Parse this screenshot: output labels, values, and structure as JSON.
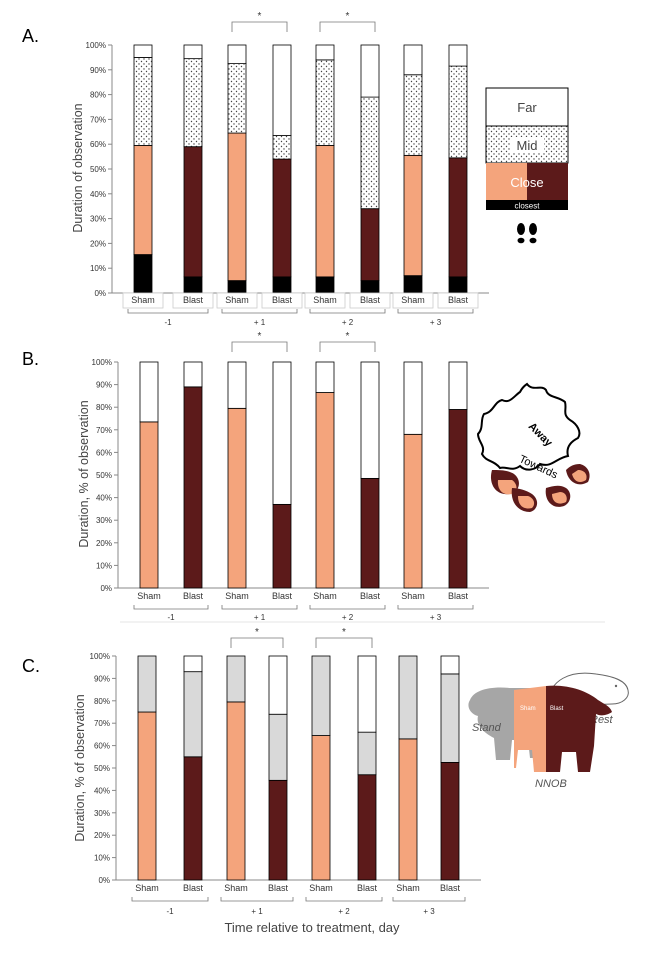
{
  "figure": {
    "x_axis_title": "Time relative to treatment, day",
    "colors": {
      "sham_close": "#F4A47C",
      "blast_close": "#5C1A1A",
      "closest": "#000000",
      "mid_dots": "#444444",
      "far": "#FFFFFF",
      "grey": "#D9D9D9",
      "axis": "#888888",
      "text": "#333333"
    }
  },
  "chart_data": [
    {
      "panel_label": "A.",
      "type": "bar",
      "stacked": true,
      "title": "",
      "ylabel": "Duration of observation",
      "xlabel": "",
      "ylim": [
        0,
        100
      ],
      "yticks": [
        "0%",
        "10%",
        "20%",
        "30%",
        "40%",
        "50%",
        "60%",
        "70%",
        "80%",
        "90%",
        "100%"
      ],
      "categories": [
        "Sham",
        "Blast",
        "Sham",
        "Blast",
        "Sham",
        "Blast",
        "Sham",
        "Blast"
      ],
      "groups": [
        "-1",
        "+ 1",
        "+ 2",
        "+ 3"
      ],
      "significance": [
        {
          "group": 1,
          "label": "*"
        },
        {
          "group": 2,
          "label": "*"
        }
      ],
      "series": [
        {
          "name": "closest",
          "values": [
            15.5,
            6.5,
            5,
            6.5,
            6.5,
            5,
            7,
            6.5
          ]
        },
        {
          "name": "Close",
          "values": [
            44,
            52.5,
            59.5,
            47.5,
            53,
            29,
            48.5,
            48
          ]
        },
        {
          "name": "Mid",
          "values": [
            35.5,
            35.5,
            28,
            9.5,
            34.5,
            45,
            32.5,
            37
          ]
        },
        {
          "name": "Far",
          "values": [
            5,
            5.5,
            7.5,
            36.5,
            6,
            21,
            12,
            8.5
          ]
        }
      ],
      "legend": {
        "far": "Far",
        "mid": "Mid",
        "close": "Close",
        "closest": "closest"
      }
    },
    {
      "panel_label": "B.",
      "type": "bar",
      "stacked": true,
      "title": "",
      "ylabel": "Duration, % of observation",
      "xlabel": "",
      "ylim": [
        0,
        100
      ],
      "yticks": [
        "0%",
        "10%",
        "20%",
        "30%",
        "40%",
        "50%",
        "60%",
        "70%",
        "80%",
        "90%",
        "100%"
      ],
      "categories": [
        "Sham",
        "Blast",
        "Sham",
        "Blast",
        "Sham",
        "Blast",
        "Sham",
        "Blast"
      ],
      "groups": [
        "-1",
        "+ 1",
        "+ 2",
        "+ 3"
      ],
      "significance": [
        {
          "group": 1,
          "label": "*"
        },
        {
          "group": 2,
          "label": "*"
        }
      ],
      "series": [
        {
          "name": "Towards",
          "values": [
            73.5,
            89,
            79.5,
            37,
            86.5,
            48.5,
            68,
            79
          ]
        },
        {
          "name": "Away",
          "values": [
            26.5,
            11,
            20.5,
            63,
            13.5,
            51.5,
            32,
            21
          ]
        }
      ],
      "legend": {
        "away": "Away",
        "towards": "Towards"
      }
    },
    {
      "panel_label": "C.",
      "type": "bar",
      "stacked": true,
      "title": "",
      "ylabel": "Duration, % of observation",
      "xlabel": "Time relative to treatment, day",
      "ylim": [
        0,
        100
      ],
      "yticks": [
        "0%",
        "10%",
        "20%",
        "30%",
        "40%",
        "50%",
        "60%",
        "70%",
        "80%",
        "90%",
        "100%"
      ],
      "categories": [
        "Sham",
        "Blast",
        "Sham",
        "Blast",
        "Sham",
        "Blast",
        "Sham",
        "Blast"
      ],
      "groups": [
        "-1",
        "+ 1",
        "+ 2",
        "+ 3"
      ],
      "significance": [
        {
          "group": 1,
          "label": "*"
        },
        {
          "group": 2,
          "label": "*"
        }
      ],
      "series": [
        {
          "name": "NNOB",
          "values": [
            75,
            55,
            79.5,
            44.5,
            64.5,
            47,
            63,
            52.5
          ]
        },
        {
          "name": "Stand",
          "values": [
            25,
            38,
            20.5,
            29.5,
            35.5,
            19,
            37,
            39.5
          ]
        },
        {
          "name": "Rest",
          "values": [
            0,
            7,
            0,
            26,
            0,
            34,
            0,
            8
          ]
        }
      ],
      "legend": {
        "stand": "Stand",
        "rest": "Rest",
        "nnob": "NNOB",
        "sham": "Sham",
        "blast": "Blast"
      }
    }
  ]
}
